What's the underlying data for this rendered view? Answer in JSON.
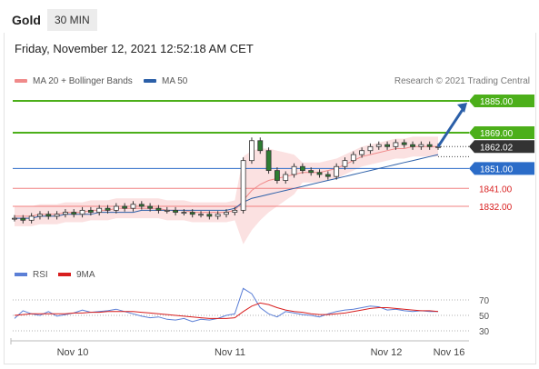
{
  "header": {
    "instrument": "Gold",
    "timeframe": "30 MIN"
  },
  "datetime": "Friday, November 12, 2021 12:52:18 AM CET",
  "legend": {
    "ma20": {
      "label": "MA 20 + Bollinger Bands",
      "color": "#f08a8a"
    },
    "ma50": {
      "label": "MA 50",
      "color": "#2b5fa8"
    }
  },
  "credit": "Research © 2021 Trading Central",
  "rsi_legend": {
    "rsi": {
      "label": "RSI",
      "color": "#5b7fd6"
    },
    "ma9": {
      "label": "9MA",
      "color": "#d81e1e"
    }
  },
  "colors": {
    "green": "#4caf1a",
    "blue": "#2b6cc8",
    "red": "#d81e1e",
    "dark": "#333333"
  },
  "chart_data": [
    {
      "type": "line",
      "title": "",
      "ylim": [
        1815,
        1890
      ],
      "x_ticks": [
        "Nov 10",
        "Nov 11",
        "Nov 12",
        "Nov 16"
      ],
      "levels": [
        {
          "label": "1885.00",
          "value": 1885.0,
          "kind": "resistance-target",
          "color": "#4caf1a"
        },
        {
          "label": "1869.00",
          "value": 1869.0,
          "kind": "resistance",
          "color": "#4caf1a"
        },
        {
          "label": "1862.02",
          "value": 1862.02,
          "kind": "last-price",
          "color": "#333333"
        },
        {
          "label": "1851.00",
          "value": 1851.0,
          "kind": "pivot",
          "color": "#2b6cc8"
        },
        {
          "label": "1841.00",
          "value": 1841.0,
          "kind": "support",
          "color": "#d81e1e"
        },
        {
          "label": "1832.00",
          "value": 1832.0,
          "kind": "support",
          "color": "#d81e1e"
        }
      ],
      "price_series": [
        1826,
        1825,
        1827,
        1828,
        1827,
        1828,
        1829,
        1828,
        1830,
        1829,
        1831,
        1830,
        1832,
        1831,
        1833,
        1832,
        1831,
        1830,
        1830,
        1829,
        1829,
        1828,
        1828,
        1827,
        1828,
        1829,
        1830,
        1855,
        1865,
        1860,
        1850,
        1845,
        1848,
        1852,
        1850,
        1849,
        1848,
        1847,
        1852,
        1855,
        1858,
        1860,
        1862,
        1863,
        1862,
        1864,
        1863,
        1862,
        1863,
        1862,
        1862
      ],
      "ma20_series": [
        1827,
        1827,
        1827,
        1828,
        1828,
        1828,
        1829,
        1829,
        1829,
        1830,
        1830,
        1830,
        1831,
        1831,
        1831,
        1831,
        1831,
        1831,
        1830,
        1830,
        1830,
        1829,
        1829,
        1829,
        1829,
        1829,
        1830,
        1835,
        1840,
        1843,
        1845,
        1846,
        1847,
        1848,
        1849,
        1849,
        1849,
        1850,
        1851,
        1853,
        1855,
        1857,
        1858,
        1859,
        1860,
        1861,
        1861,
        1862,
        1862,
        1862,
        1862
      ],
      "ma50_series": [
        1826,
        1826,
        1826,
        1827,
        1827,
        1827,
        1828,
        1828,
        1828,
        1828,
        1829,
        1829,
        1829,
        1829,
        1829,
        1830,
        1830,
        1830,
        1830,
        1830,
        1830,
        1830,
        1830,
        1830,
        1830,
        1830,
        1831,
        1834,
        1836,
        1837,
        1838,
        1839,
        1840,
        1841,
        1842,
        1843,
        1844,
        1845,
        1846,
        1847,
        1848,
        1849,
        1850,
        1851,
        1852,
        1853,
        1854,
        1855,
        1856,
        1857,
        1858
      ]
    },
    {
      "type": "line",
      "title": "",
      "ylim": [
        20,
        90
      ],
      "y_ticks": [
        "70",
        "50",
        "30"
      ],
      "series": [
        {
          "name": "RSI",
          "values": [
            46,
            56,
            52,
            50,
            55,
            49,
            51,
            53,
            57,
            54,
            55,
            56,
            58,
            55,
            52,
            49,
            47,
            48,
            45,
            44,
            46,
            42,
            45,
            44,
            46,
            50,
            52,
            85,
            78,
            60,
            52,
            48,
            55,
            53,
            51,
            50,
            48,
            52,
            55,
            57,
            58,
            60,
            62,
            61,
            57,
            58,
            56,
            55,
            56,
            55,
            55
          ]
        },
        {
          "name": "9MA",
          "values": [
            50,
            51,
            52,
            52,
            52,
            52,
            52,
            53,
            53,
            54,
            54,
            55,
            55,
            55,
            55,
            54,
            53,
            52,
            51,
            50,
            49,
            48,
            47,
            46,
            46,
            46,
            47,
            55,
            62,
            66,
            64,
            60,
            57,
            55,
            54,
            52,
            51,
            51,
            52,
            53,
            55,
            57,
            59,
            60,
            60,
            59,
            58,
            57,
            56,
            56,
            55
          ]
        }
      ]
    }
  ]
}
